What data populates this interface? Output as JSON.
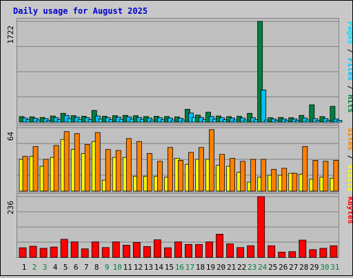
{
  "title": "Daily usage for August 2025",
  "colors": {
    "title": "#0000cc",
    "panel_bg": "#c0c0c0",
    "frame_bg": "#cccccc",
    "hits": "#008040",
    "files": "#00c0ff",
    "pages": "#00e0ff",
    "visits": "#ffff00",
    "sites": "#ff8000",
    "kbytes": "#ff0000",
    "weekend_label": "#008040",
    "weekday_label": "#000000"
  },
  "chart_data": [
    {
      "type": "bar",
      "panel": "hits-files-pages",
      "ymax_label": "1722",
      "ymax": 1722,
      "legend": [
        "Pages",
        "Files",
        "Hits"
      ],
      "categories": [
        "1",
        "2",
        "3",
        "4",
        "5",
        "6",
        "7",
        "8",
        "9",
        "10",
        "11",
        "12",
        "13",
        "14",
        "15",
        "16",
        "17",
        "18",
        "19",
        "20",
        "21",
        "22",
        "23",
        "24",
        "25",
        "26",
        "27",
        "28",
        "29",
        "30",
        "31"
      ],
      "weekend_days": [
        "2",
        "3",
        "9",
        "10",
        "16",
        "17",
        "23",
        "24",
        "30",
        "31"
      ],
      "series": [
        {
          "name": "Hits",
          "values": [
            95,
            90,
            80,
            105,
            150,
            110,
            100,
            200,
            100,
            110,
            115,
            110,
            95,
            100,
            95,
            90,
            220,
            120,
            170,
            105,
            95,
            100,
            150,
            1722,
            75,
            80,
            75,
            115,
            295,
            95,
            270
          ]
        },
        {
          "name": "Files",
          "values": [
            70,
            65,
            60,
            75,
            115,
            85,
            75,
            105,
            75,
            85,
            90,
            80,
            70,
            75,
            70,
            65,
            155,
            80,
            95,
            75,
            70,
            70,
            75,
            550,
            55,
            55,
            55,
            70,
            60,
            60,
            55
          ]
        },
        {
          "name": "Pages",
          "values": [
            40,
            35,
            30,
            40,
            60,
            45,
            40,
            55,
            40,
            45,
            50,
            45,
            35,
            40,
            35,
            35,
            80,
            40,
            50,
            40,
            35,
            35,
            40,
            35,
            30,
            30,
            30,
            35,
            30,
            30,
            30
          ]
        }
      ]
    },
    {
      "type": "bar",
      "panel": "visits-sites",
      "ymax_label": "64",
      "ymax": 64,
      "legend": [
        "Sites",
        "Visits"
      ],
      "categories": [
        "1",
        "2",
        "3",
        "4",
        "5",
        "6",
        "7",
        "8",
        "9",
        "10",
        "11",
        "12",
        "13",
        "14",
        "15",
        "16",
        "17",
        "18",
        "19",
        "20",
        "21",
        "22",
        "23",
        "24",
        "25",
        "26",
        "27",
        "28",
        "29",
        "30",
        "31"
      ],
      "series": [
        {
          "name": "Visits",
          "values": [
            32,
            35,
            25,
            34,
            52,
            42,
            38,
            50,
            11,
            34,
            34,
            15,
            15,
            15,
            14,
            33,
            27,
            32,
            32,
            26,
            25,
            19,
            9,
            14,
            16,
            16,
            18,
            17,
            12,
            14,
            13
          ]
        },
        {
          "name": "Sites",
          "values": [
            35,
            45,
            32,
            46,
            60,
            58,
            47,
            59,
            42,
            41,
            53,
            50,
            38,
            30,
            44,
            31,
            39,
            44,
            62,
            37,
            33,
            30,
            32,
            32,
            22,
            23,
            18,
            45,
            31,
            30,
            31
          ]
        }
      ]
    },
    {
      "type": "bar",
      "panel": "kbytes",
      "ymax_label": "236",
      "ymax": 236,
      "legend": [
        "KBytes"
      ],
      "categories": [
        "1",
        "2",
        "3",
        "4",
        "5",
        "6",
        "7",
        "8",
        "9",
        "10",
        "11",
        "12",
        "13",
        "14",
        "15",
        "16",
        "17",
        "18",
        "19",
        "20",
        "21",
        "22",
        "23",
        "24",
        "25",
        "26",
        "27",
        "28",
        "29",
        "30",
        "31"
      ],
      "series": [
        {
          "name": "KBytes",
          "values": [
            37,
            43,
            35,
            40,
            70,
            60,
            33,
            60,
            38,
            60,
            47,
            58,
            42,
            68,
            37,
            60,
            50,
            50,
            60,
            90,
            52,
            38,
            45,
            236,
            45,
            20,
            22,
            67,
            30,
            35,
            45
          ]
        }
      ]
    }
  ]
}
